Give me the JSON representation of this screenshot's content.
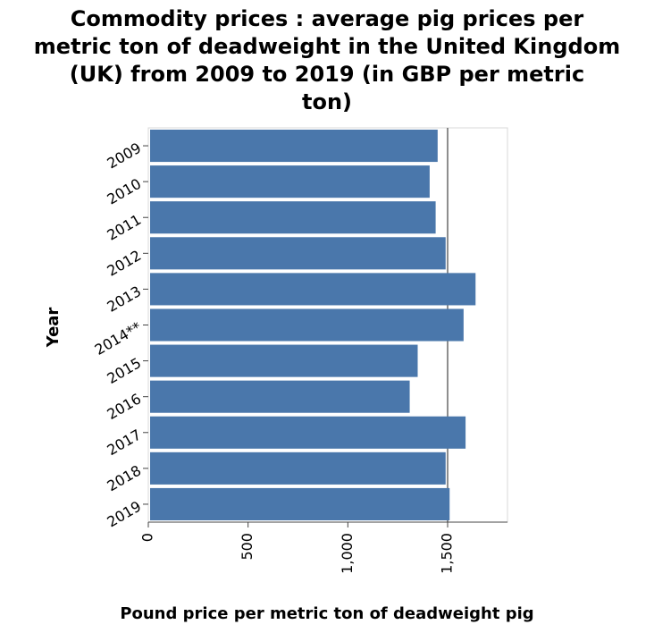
{
  "chart_data": {
    "type": "bar",
    "orientation": "horizontal",
    "title_lines": [
      "Commodity prices : average pig prices per",
      "metric ton of deadweight in the United Kingdom",
      "(UK) from 2009 to 2019 (in GBP per metric",
      "ton)"
    ],
    "xlabel": "Pound price per metric ton of deadweight pig",
    "ylabel": "Year",
    "categories": [
      "2009",
      "2010",
      "2011",
      "2012",
      "2013",
      "2014**",
      "2015",
      "2016",
      "2017",
      "2018",
      "2019"
    ],
    "values": [
      1450,
      1410,
      1440,
      1490,
      1640,
      1580,
      1350,
      1310,
      1590,
      1490,
      1510
    ],
    "xlim": [
      0,
      1800
    ],
    "xticks": [
      0,
      500,
      1000,
      1500
    ],
    "xtick_labels": [
      "0",
      "500",
      "1,000",
      "1,500"
    ],
    "bar_color": "#4a77ab",
    "grid": "vertical line at 1,500"
  }
}
